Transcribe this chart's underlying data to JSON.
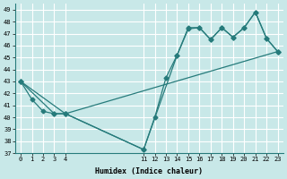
{
  "xlabel": "Humidex (Indice chaleur)",
  "bg_color": "#c8e8e8",
  "grid_color": "#ffffff",
  "line_color": "#267b7b",
  "xlim": [
    -0.5,
    23.5
  ],
  "ylim": [
    37,
    49.5
  ],
  "yticks": [
    37,
    38,
    39,
    40,
    41,
    42,
    43,
    44,
    45,
    46,
    47,
    48,
    49
  ],
  "xticks": [
    0,
    1,
    2,
    3,
    4,
    11,
    12,
    13,
    14,
    15,
    16,
    17,
    18,
    19,
    20,
    21,
    22,
    23
  ],
  "line1_x": [
    0,
    1,
    2,
    3,
    4,
    11,
    12,
    13,
    14,
    15,
    16,
    17,
    18,
    19,
    20,
    21,
    22,
    23
  ],
  "line1_y": [
    43,
    41.5,
    40.5,
    40.3,
    40.3,
    37.3,
    40.0,
    43.3,
    45.2,
    47.4,
    47.5,
    46.5,
    47.5,
    46.7,
    47.5,
    48.8,
    46.6,
    45.5
  ],
  "line2_x": [
    0,
    3,
    4,
    11,
    14,
    15,
    16,
    17,
    18,
    19,
    20,
    21,
    22,
    23
  ],
  "line2_y": [
    43,
    40.3,
    40.3,
    37.3,
    45.2,
    47.5,
    47.5,
    46.5,
    47.5,
    46.7,
    47.5,
    48.8,
    46.6,
    45.5
  ],
  "line3_x": [
    0,
    4,
    23
  ],
  "line3_y": [
    43,
    40.3,
    45.5
  ]
}
